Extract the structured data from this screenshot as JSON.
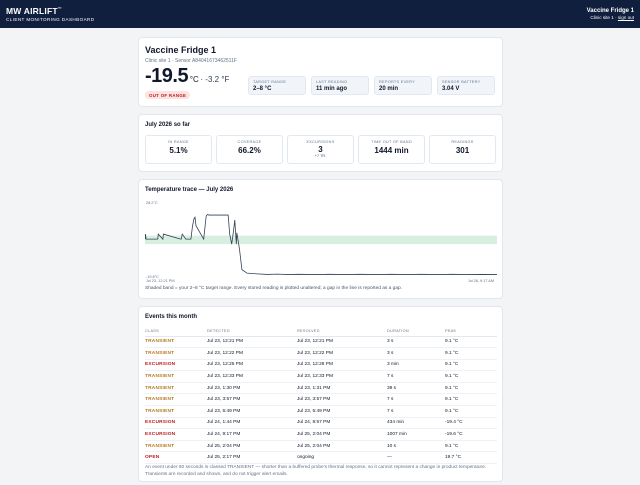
{
  "header": {
    "brand": "MW AIRLIFT",
    "brand_mark": "™",
    "subtitle": "CLIENT MONITORING DASHBOARD",
    "device_name": "Vaccine Fridge 1",
    "site": "Clinic site 1",
    "sep": "·",
    "sign_out": "sign out"
  },
  "device": {
    "name": "Vaccine Fridge 1",
    "meta": "Clinic site 1 · Sensor A84041673462511F",
    "temp_c": "-19.5",
    "unit_c": "°C",
    "temp_f": " · -3.2 °F",
    "status": "OUT OF RANGE",
    "stats": [
      {
        "label": "TARGET RANGE",
        "value": "2–8 °C"
      },
      {
        "label": "LAST READING",
        "value": "11 min ago"
      },
      {
        "label": "REPORTS EVERY",
        "value": "20 min"
      },
      {
        "label": "SENSOR BATTERY",
        "value": "3.04 V"
      }
    ]
  },
  "summary": {
    "title": "July 2026 so far",
    "items": [
      {
        "label": "IN RANGE",
        "value": "5.1%",
        "sub": ""
      },
      {
        "label": "COVERAGE",
        "value": "66.2%",
        "sub": ""
      },
      {
        "label": "EXCURSIONS",
        "value": "3",
        "sub": "+7 TR."
      },
      {
        "label": "TIME OUT OF BAND",
        "value": "1444 min",
        "sub": ""
      },
      {
        "label": "READINGS",
        "value": "301",
        "sub": ""
      }
    ]
  },
  "chart": {
    "title": "Temperature trace — July 2026",
    "y_max_label": "28.2°C",
    "y_min_label": "-19.8°C",
    "x_start_label": "Jul 23, 12:21 PM",
    "x_end_label": "Jul 26, 9:17 AM",
    "caption": "Shaded band = your 2–8 °C target range. Every stored reading is plotted unaltered; a gap in the line is reported as a gap.",
    "colors": {
      "band": "#d7eee0",
      "line": "#334155"
    }
  },
  "chart_data": {
    "type": "line",
    "title": "Temperature trace — July 2026",
    "xlabel": "",
    "ylabel": "",
    "ylim": [
      -19.8,
      28.2
    ],
    "target_band": [
      2,
      8
    ],
    "x_range": [
      "Jul 23, 12:21 PM",
      "Jul 26, 9:17 AM"
    ],
    "grid": false,
    "series": [
      {
        "x_hours": [
          0,
          0.1,
          0.2,
          2.5,
          2.6,
          3.5,
          3.6,
          7.0,
          7.1,
          7.3,
          8.0,
          8.5,
          9.0,
          9.3,
          9.6,
          9.8,
          10.0,
          11.5,
          12.0,
          12.3,
          12.5,
          12.8,
          13.0,
          13.5,
          14.0,
          14.5,
          15.0,
          15.5,
          16.0,
          16.3,
          16.6,
          17.0,
          17.3,
          17.6,
          17.9,
          18.0,
          18.5,
          19.0,
          20.0,
          22.0,
          24.0,
          26.0,
          28.0,
          30.0,
          32.0,
          34.0,
          36.0,
          38.0,
          40.0,
          42.0,
          44.0,
          46.0,
          48.0,
          50.0,
          52.0,
          54.0,
          56.0,
          58.0,
          60.0,
          62.0,
          64.0,
          66.0,
          68.0,
          69.0
        ],
        "values": [
          5.5,
          9.1,
          5.5,
          5.5,
          9.1,
          5.5,
          9.1,
          5.5,
          5.5,
          9.1,
          5.5,
          5.5,
          5.5,
          14.5,
          20.0,
          21.0,
          15.0,
          5.5,
          22.0,
          23.0,
          22.5,
          22.5,
          22.5,
          22.5,
          22.5,
          22.5,
          22.5,
          22.5,
          22.5,
          22.5,
          9.0,
          2.0,
          10.0,
          19.0,
          2.0,
          10.0,
          -1.0,
          -16.0,
          -18.5,
          -19.0,
          -19.4,
          -19.2,
          -19.5,
          -19.3,
          -19.4,
          -19.5,
          -19.3,
          -19.4,
          -19.5,
          -19.3,
          -19.4,
          -19.5,
          -19.3,
          -19.4,
          -19.5,
          -19.3,
          -19.4,
          -19.5,
          -19.3,
          -19.4,
          -19.5,
          -19.4,
          -19.5,
          -19.5
        ]
      }
    ]
  },
  "events": {
    "title": "Events this month",
    "columns": [
      "CLASS",
      "DETECTED",
      "RESOLVED",
      "DURATION",
      "PEAK"
    ],
    "rows": [
      {
        "cls": "TRANSIENT",
        "kind": "transient",
        "detected": "Jul 23, 12:21 PM",
        "resolved": "Jul 23, 12:21 PM",
        "duration": "3 s",
        "peak": "9.1 °C"
      },
      {
        "cls": "TRANSIENT",
        "kind": "transient",
        "detected": "Jul 23, 12:22 PM",
        "resolved": "Jul 23, 12:22 PM",
        "duration": "3 s",
        "peak": "9.1 °C"
      },
      {
        "cls": "EXCURSION",
        "kind": "excursion",
        "detected": "Jul 23, 12:25 PM",
        "resolved": "Jul 23, 12:28 PM",
        "duration": "3 min",
        "peak": "9.1 °C"
      },
      {
        "cls": "TRANSIENT",
        "kind": "transient",
        "detected": "Jul 23, 12:33 PM",
        "resolved": "Jul 23, 12:33 PM",
        "duration": "7 s",
        "peak": "9.1 °C"
      },
      {
        "cls": "TRANSIENT",
        "kind": "transient",
        "detected": "Jul 23, 1:30 PM",
        "resolved": "Jul 23, 1:31 PM",
        "duration": "39 s",
        "peak": "9.1 °C"
      },
      {
        "cls": "TRANSIENT",
        "kind": "transient",
        "detected": "Jul 23, 3:57 PM",
        "resolved": "Jul 23, 3:57 PM",
        "duration": "7 s",
        "peak": "9.1 °C"
      },
      {
        "cls": "TRANSIENT",
        "kind": "transient",
        "detected": "Jul 23, 5:49 PM",
        "resolved": "Jul 23, 5:49 PM",
        "duration": "7 s",
        "peak": "9.1 °C"
      },
      {
        "cls": "EXCURSION",
        "kind": "excursion",
        "detected": "Jul 24, 1:44 PM",
        "resolved": "Jul 24, 8:57 PM",
        "duration": "434 min",
        "peak": "-19.4 °C"
      },
      {
        "cls": "EXCURSION",
        "kind": "excursion",
        "detected": "Jul 24, 9:17 PM",
        "resolved": "Jul 25, 2:04 PM",
        "duration": "1007 min",
        "peak": "-19.6 °C"
      },
      {
        "cls": "TRANSIENT",
        "kind": "transient",
        "detected": "Jul 25, 2:04 PM",
        "resolved": "Jul 25, 2:04 PM",
        "duration": "10 s",
        "peak": "9.1 °C"
      },
      {
        "cls": "OPEN",
        "kind": "open",
        "detected": "Jul 25, 2:17 PM",
        "resolved": "ongoing",
        "duration": "—",
        "peak": "19.7 °C"
      }
    ],
    "footnote": "An event under 60 seconds is classed TRANSIENT — shorter than a buffered probe's thermal response, so it cannot represent a change in product temperature. Transients are recorded and shown, and do not trigger alert emails."
  }
}
